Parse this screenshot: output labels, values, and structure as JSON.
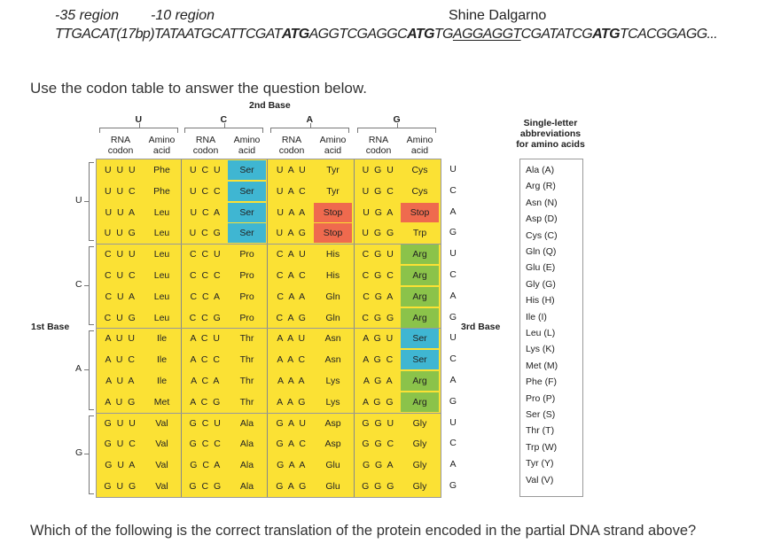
{
  "header": {
    "region35": "-35 region",
    "region10": "-10 region",
    "shine": "Shine Dalgarno",
    "seq": [
      {
        "t": "TTGACAT(17bp)TATAATGCATTCGAT",
        "b": false,
        "u": false
      },
      {
        "t": "ATG",
        "b": true,
        "u": false
      },
      {
        "t": "AGGTCGAGGC",
        "b": false,
        "u": false
      },
      {
        "t": "ATG",
        "b": true,
        "u": false
      },
      {
        "t": "TG",
        "b": false,
        "u": false
      },
      {
        "t": "AGGAGGT",
        "b": false,
        "u": true
      },
      {
        "t": "CGATATCG",
        "b": false,
        "u": false
      },
      {
        "t": "ATG",
        "b": true,
        "u": false
      },
      {
        "t": "TCACGGAGG...",
        "b": false,
        "u": false
      }
    ]
  },
  "question_intro": "Use the codon table to answer the question below.",
  "question": "Which of the following is the correct translation of the protein encoded in the partial DNA strand above?",
  "table": {
    "second_base_title": "2nd Base",
    "first_base_title": "1st Base",
    "third_base_title": "3rd Base",
    "second_bases": [
      "U",
      "C",
      "A",
      "G"
    ],
    "first_bases": [
      "U",
      "C",
      "A",
      "G"
    ],
    "third_bases": [
      "U",
      "C",
      "A",
      "G"
    ],
    "col_header_codon": "RNA codon",
    "col_header_aa": "Amino acid",
    "rows": [
      [
        [
          "UUU",
          "Phe",
          ""
        ],
        [
          "UCU",
          "Ser",
          "blue"
        ],
        [
          "UAU",
          "Tyr",
          ""
        ],
        [
          "UGU",
          "Cys",
          ""
        ]
      ],
      [
        [
          "UUC",
          "Phe",
          ""
        ],
        [
          "UCC",
          "Ser",
          "blue"
        ],
        [
          "UAC",
          "Tyr",
          ""
        ],
        [
          "UGC",
          "Cys",
          ""
        ]
      ],
      [
        [
          "UUA",
          "Leu",
          ""
        ],
        [
          "UCA",
          "Ser",
          "blue"
        ],
        [
          "UAA",
          "Stop",
          "red"
        ],
        [
          "UGA",
          "Stop",
          "red"
        ]
      ],
      [
        [
          "UUG",
          "Leu",
          ""
        ],
        [
          "UCG",
          "Ser",
          "blue"
        ],
        [
          "UAG",
          "Stop",
          "red"
        ],
        [
          "UGG",
          "Trp",
          ""
        ]
      ],
      [
        [
          "CUU",
          "Leu",
          ""
        ],
        [
          "CCU",
          "Pro",
          ""
        ],
        [
          "CAU",
          "His",
          ""
        ],
        [
          "CGU",
          "Arg",
          "green"
        ]
      ],
      [
        [
          "CUC",
          "Leu",
          ""
        ],
        [
          "CCC",
          "Pro",
          ""
        ],
        [
          "CAC",
          "His",
          ""
        ],
        [
          "CGC",
          "Arg",
          "green"
        ]
      ],
      [
        [
          "CUA",
          "Leu",
          ""
        ],
        [
          "CCA",
          "Pro",
          ""
        ],
        [
          "CAA",
          "Gln",
          ""
        ],
        [
          "CGA",
          "Arg",
          "green"
        ]
      ],
      [
        [
          "CUG",
          "Leu",
          ""
        ],
        [
          "CCG",
          "Pro",
          ""
        ],
        [
          "CAG",
          "Gln",
          ""
        ],
        [
          "CGG",
          "Arg",
          "green"
        ]
      ],
      [
        [
          "AUU",
          "Ile",
          ""
        ],
        [
          "ACU",
          "Thr",
          ""
        ],
        [
          "AAU",
          "Asn",
          ""
        ],
        [
          "AGU",
          "Ser",
          "blue"
        ]
      ],
      [
        [
          "AUC",
          "Ile",
          ""
        ],
        [
          "ACC",
          "Thr",
          ""
        ],
        [
          "AAC",
          "Asn",
          ""
        ],
        [
          "AGC",
          "Ser",
          "blue"
        ]
      ],
      [
        [
          "AUA",
          "Ile",
          ""
        ],
        [
          "ACA",
          "Thr",
          ""
        ],
        [
          "AAA",
          "Lys",
          ""
        ],
        [
          "AGA",
          "Arg",
          "green"
        ]
      ],
      [
        [
          "AUG",
          "Met",
          ""
        ],
        [
          "ACG",
          "Thr",
          ""
        ],
        [
          "AAG",
          "Lys",
          ""
        ],
        [
          "AGG",
          "Arg",
          "green"
        ]
      ],
      [
        [
          "GUU",
          "Val",
          ""
        ],
        [
          "GCU",
          "Ala",
          ""
        ],
        [
          "GAU",
          "Asp",
          ""
        ],
        [
          "GGU",
          "Gly",
          ""
        ]
      ],
      [
        [
          "GUC",
          "Val",
          ""
        ],
        [
          "GCC",
          "Ala",
          ""
        ],
        [
          "GAC",
          "Asp",
          ""
        ],
        [
          "GGC",
          "Gly",
          ""
        ]
      ],
      [
        [
          "GUA",
          "Val",
          ""
        ],
        [
          "GCA",
          "Ala",
          ""
        ],
        [
          "GAA",
          "Glu",
          ""
        ],
        [
          "GGA",
          "Gly",
          ""
        ]
      ],
      [
        [
          "GUG",
          "Val",
          ""
        ],
        [
          "GCG",
          "Ala",
          ""
        ],
        [
          "GAG",
          "Glu",
          ""
        ],
        [
          "GGG",
          "Gly",
          ""
        ]
      ]
    ]
  },
  "abbreviations": {
    "title_lines": [
      "Single-letter",
      "abbreviations",
      "for amino acids"
    ],
    "items": [
      "Ala (A)",
      "Arg (R)",
      "Asn (N)",
      "Asp (D)",
      "Cys (C)",
      "Gln (Q)",
      "Glu (E)",
      "Gly (G)",
      "His (H)",
      "Ile (I)",
      "Leu (L)",
      "Lys (K)",
      "Met (M)",
      "Phe (F)",
      "Pro (P)",
      "Ser (S)",
      "Thr (T)",
      "Trp (W)",
      "Tyr (Y)",
      "Val (V)"
    ]
  }
}
